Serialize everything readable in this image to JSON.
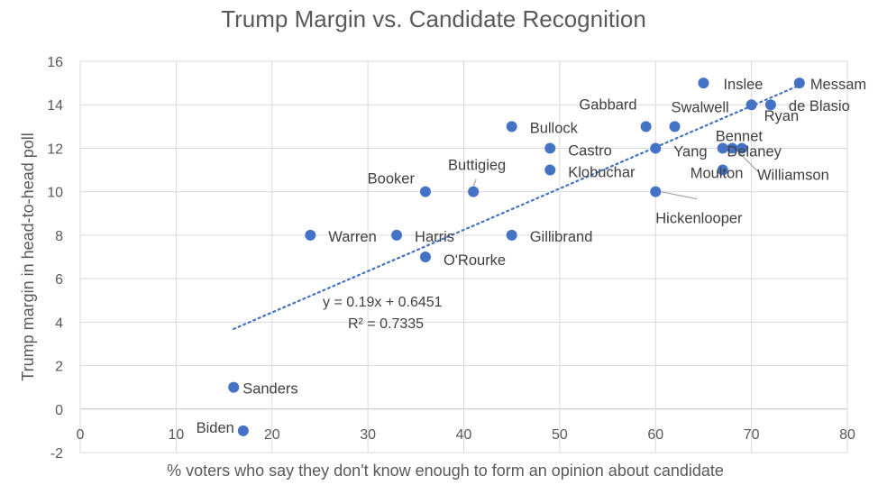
{
  "chart_data": {
    "type": "scatter",
    "title": "Trump Margin vs. Candidate Recognition",
    "xlabel": "% voters who say they don't know enough to form an opinion about candidate",
    "ylabel": "Trump margin in head-to-head poll",
    "xlim": [
      0,
      80
    ],
    "ylim": [
      -2,
      16
    ],
    "x_ticks": [
      0,
      10,
      20,
      30,
      40,
      50,
      60,
      70,
      80
    ],
    "y_ticks": [
      -2,
      0,
      2,
      4,
      6,
      8,
      10,
      12,
      14,
      16
    ],
    "grid": true,
    "legend": "none",
    "point_color": "#4472c4",
    "points": [
      {
        "label": "Sanders",
        "x": 16,
        "y": 1
      },
      {
        "label": "Biden",
        "x": 17,
        "y": -1
      },
      {
        "label": "Warren",
        "x": 24,
        "y": 8
      },
      {
        "label": "Harris",
        "x": 33,
        "y": 8
      },
      {
        "label": "Booker",
        "x": 36,
        "y": 10
      },
      {
        "label": "O'Rourke",
        "x": 36,
        "y": 7
      },
      {
        "label": "Buttigieg",
        "x": 41,
        "y": 10
      },
      {
        "label": "Bullock",
        "x": 45,
        "y": 13
      },
      {
        "label": "Gillibrand",
        "x": 45,
        "y": 8
      },
      {
        "label": "Castro",
        "x": 49,
        "y": 12
      },
      {
        "label": "Klobuchar",
        "x": 49,
        "y": 11
      },
      {
        "label": "Gabbard",
        "x": 59,
        "y": 13
      },
      {
        "label": "Yang",
        "x": 60,
        "y": 12
      },
      {
        "label": "Hickenlooper",
        "x": 60,
        "y": 10
      },
      {
        "label": "Swalwell",
        "x": 62,
        "y": 13
      },
      {
        "label": "Inslee",
        "x": 65,
        "y": 15
      },
      {
        "label": "Moulton",
        "x": 67,
        "y": 11
      },
      {
        "label": "Bennet",
        "x": 67,
        "y": 12
      },
      {
        "label": "Delaney",
        "x": 68,
        "y": 12
      },
      {
        "label": "Williamson",
        "x": 69,
        "y": 12
      },
      {
        "label": "Ryan",
        "x": 70,
        "y": 14
      },
      {
        "label": "de Blasio",
        "x": 72,
        "y": 14
      },
      {
        "label": "Messam",
        "x": 75,
        "y": 15
      }
    ],
    "trendline": {
      "type": "linear",
      "slope": 0.19,
      "intercept": 0.6451,
      "x_range": [
        16,
        75
      ],
      "equation": "y = 0.19x + 0.6451",
      "r_squared": "R² = 0.7335"
    }
  }
}
